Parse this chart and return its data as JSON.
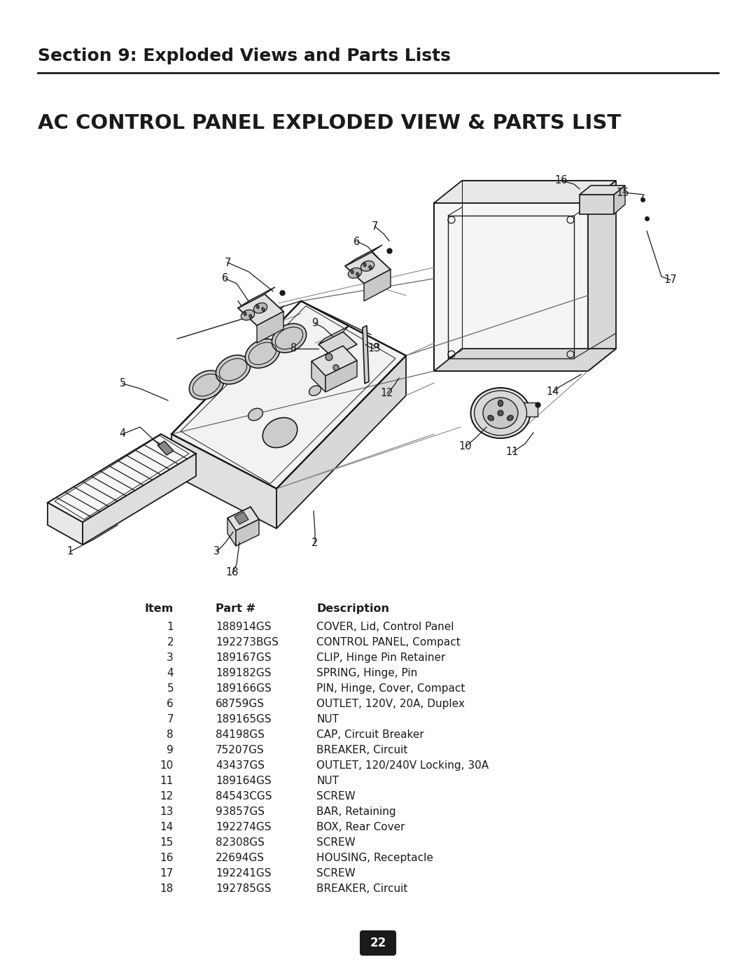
{
  "section_title": "Section 9: Exploded Views and Parts Lists",
  "page_title": "AC CONTROL PANEL EXPLODED VIEW & PARTS LIST",
  "page_number": "22",
  "background_color": "#ffffff",
  "text_color": "#1a1a1a",
  "table_headers": [
    "Item",
    "Part #",
    "Description"
  ],
  "parts": [
    [
      "1",
      "188914GS",
      "COVER, Lid, Control Panel"
    ],
    [
      "2",
      "192273BGS",
      "CONTROL PANEL, Compact"
    ],
    [
      "3",
      "189167GS",
      "CLIP, Hinge Pin Retainer"
    ],
    [
      "4",
      "189182GS",
      "SPRING, Hinge, Pin"
    ],
    [
      "5",
      "189166GS",
      "PIN, Hinge, Cover, Compact"
    ],
    [
      "6",
      "68759GS",
      "OUTLET, 120V, 20A, Duplex"
    ],
    [
      "7",
      "189165GS",
      "NUT"
    ],
    [
      "8",
      "84198GS",
      "CAP, Circuit Breaker"
    ],
    [
      "9",
      "75207GS",
      "BREAKER, Circuit"
    ],
    [
      "10",
      "43437GS",
      "OUTLET, 120/240V Locking, 30A"
    ],
    [
      "11",
      "189164GS",
      "NUT"
    ],
    [
      "12",
      "84543CGS",
      "SCREW"
    ],
    [
      "13",
      "93857GS",
      "BAR, Retaining"
    ],
    [
      "14",
      "192274GS",
      "BOX, Rear Cover"
    ],
    [
      "15",
      "82308GS",
      "SCREW"
    ],
    [
      "16",
      "22694GS",
      "HOUSING, Receptacle"
    ],
    [
      "17",
      "192241GS",
      "SCREW"
    ],
    [
      "18",
      "192785GS",
      "BREAKER, Circuit"
    ]
  ],
  "figsize": [
    10.8,
    13.97
  ],
  "dpi": 100
}
